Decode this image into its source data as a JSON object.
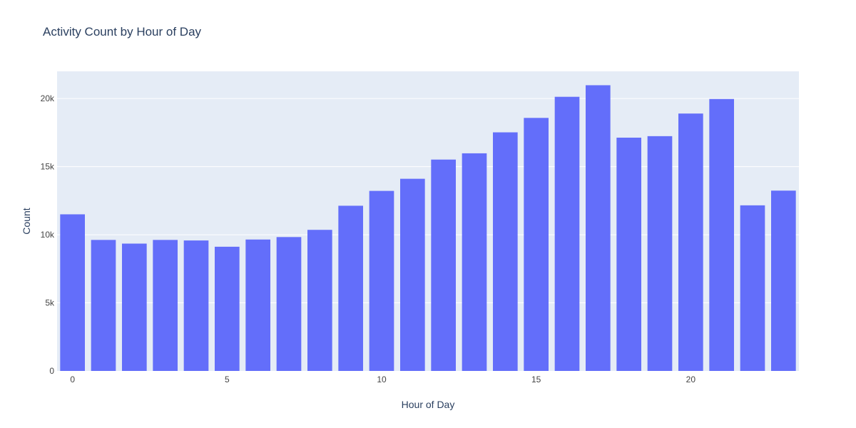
{
  "chart_data": {
    "type": "bar",
    "title": "Activity Count by Hour of Day",
    "xlabel": "Hour of Day",
    "ylabel": "Count",
    "categories": [
      0,
      1,
      2,
      3,
      4,
      5,
      6,
      7,
      8,
      9,
      10,
      11,
      12,
      13,
      14,
      15,
      16,
      17,
      18,
      19,
      20,
      21,
      22,
      23
    ],
    "values": [
      11500,
      9620,
      9350,
      9620,
      9580,
      9120,
      9650,
      9830,
      10360,
      12130,
      13220,
      14110,
      15520,
      15980,
      17520,
      18580,
      20130,
      20980,
      17130,
      17240,
      18900,
      19970,
      12160,
      13240
    ],
    "ylim": [
      0,
      22000
    ],
    "xlim": [
      -0.5,
      23.5
    ],
    "y_ticks": [
      0,
      5000,
      10000,
      15000,
      20000
    ],
    "y_tick_labels": [
      "0",
      "5k",
      "10k",
      "15k",
      "20k"
    ],
    "x_ticks": [
      0,
      5,
      10,
      15,
      20
    ],
    "x_tick_labels": [
      "0",
      "5",
      "10",
      "15",
      "20"
    ],
    "grid": true,
    "colors": {
      "bar": "#636efa",
      "plot_bg": "#e5ecf6",
      "grid": "#ffffff",
      "text": "#2a3f5f",
      "tick_text": "#444444"
    }
  }
}
